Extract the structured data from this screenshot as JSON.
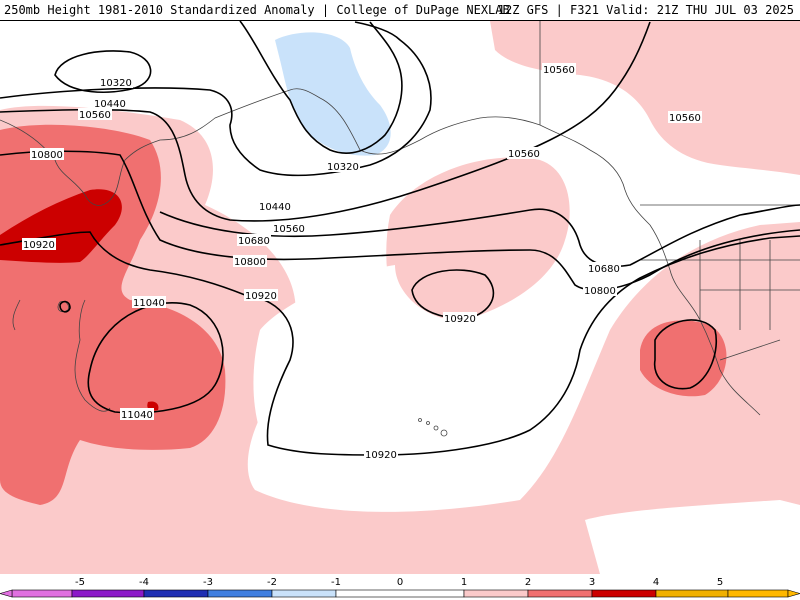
{
  "header": {
    "left_title": "250mb Height 1981-2010 Standardized Anomaly | College of DuPage NEXLAB",
    "right_title": "12Z GFS | F321 Valid: 21Z THU JUL 03 2025"
  },
  "contour_labels": [
    "10320",
    "10440",
    "10560",
    "10680",
    "10800",
    "10920",
    "11040"
  ],
  "colorbar": {
    "ticks": [
      "-5",
      "-4",
      "-3",
      "-2",
      "-1",
      "0",
      "1",
      "2",
      "3",
      "4",
      "5"
    ],
    "colors": {
      "neg5": "#e070e0",
      "neg4": "#8c1ac8",
      "neg3": "#1f2fb3",
      "neg2": "#3f7fe0",
      "neg1": "#c9e2fa",
      "zero": "#ffffff",
      "pos1": "#fbcaca",
      "pos2": "#f07070",
      "pos3": "#cc0000",
      "pos4": "#f0b000",
      "pos5": "#ffb800"
    }
  },
  "anomaly_colors": {
    "positive_1": "#fbcaca",
    "positive_2": "#f07070",
    "positive_3": "#cc0000",
    "negative_1": "#c9e2fa"
  }
}
